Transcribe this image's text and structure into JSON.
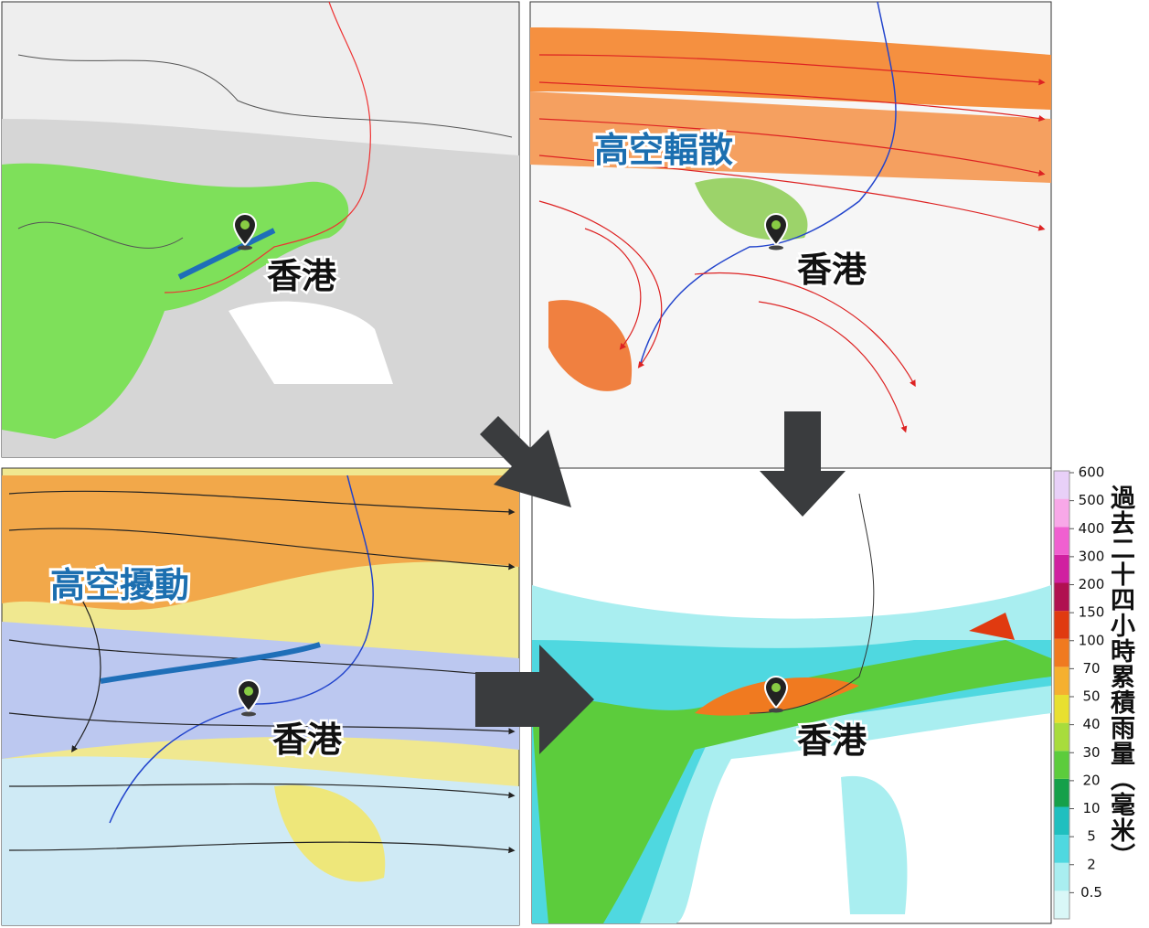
{
  "panels": [
    {
      "place_label": "香港"
    },
    {
      "place_label": "香港",
      "annotation": "高空輻散"
    },
    {
      "place_label": "香港",
      "annotation": "高空擾動"
    },
    {
      "place_label": "香港"
    }
  ],
  "colorbar": {
    "title": "過去二十四小時累積雨量（毫米）",
    "levels": [
      0.5,
      2,
      5,
      10,
      20,
      30,
      40,
      50,
      70,
      100,
      150,
      200,
      300,
      400,
      500,
      600
    ],
    "colors": [
      "#d9f7f7",
      "#a9eef0",
      "#4fd8e0",
      "#1fbfbf",
      "#15a04a",
      "#5ccc3c",
      "#a8dc3c",
      "#e8e030",
      "#f5b030",
      "#f07a20",
      "#e03a10",
      "#b01050",
      "#d020a0",
      "#f060d0",
      "#f8a8e8",
      "#e8d0f8"
    ]
  }
}
